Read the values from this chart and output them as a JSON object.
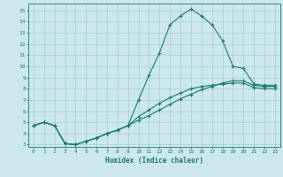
{
  "xlabel": "Humidex (Indice chaleur)",
  "bg_color": "#cce8ee",
  "grid_color": "#aacccc",
  "line_color": "#1a7a6e",
  "xlim": [
    -0.5,
    23.5
  ],
  "ylim": [
    2.8,
    15.6
  ],
  "yticks": [
    3,
    4,
    5,
    6,
    7,
    8,
    9,
    10,
    11,
    12,
    13,
    14,
    15
  ],
  "xticks": [
    0,
    1,
    2,
    3,
    4,
    5,
    6,
    7,
    8,
    9,
    10,
    11,
    12,
    13,
    14,
    15,
    16,
    17,
    18,
    19,
    20,
    21,
    22,
    23
  ],
  "curve1_x": [
    0,
    1,
    2,
    3,
    4,
    5,
    6,
    7,
    8,
    9,
    10,
    11,
    12,
    13,
    14,
    15,
    16,
    17,
    18,
    19,
    20,
    21,
    22,
    23
  ],
  "curve1_y": [
    4.7,
    5.0,
    4.7,
    3.1,
    3.0,
    3.3,
    3.6,
    4.0,
    4.3,
    4.7,
    7.0,
    9.2,
    11.2,
    13.7,
    14.5,
    15.1,
    14.5,
    13.7,
    12.3,
    10.0,
    9.8,
    8.4,
    8.3,
    8.3
  ],
  "curve2_x": [
    0,
    1,
    2,
    3,
    4,
    5,
    6,
    7,
    8,
    9,
    10,
    11,
    12,
    13,
    14,
    15,
    16,
    17,
    18,
    19,
    20,
    21,
    22,
    23
  ],
  "curve2_y": [
    4.7,
    5.0,
    4.7,
    3.1,
    3.0,
    3.3,
    3.6,
    4.0,
    4.3,
    4.7,
    5.2,
    5.6,
    6.1,
    6.6,
    7.1,
    7.5,
    7.9,
    8.2,
    8.5,
    8.7,
    8.7,
    8.3,
    8.2,
    8.2
  ],
  "curve3_x": [
    0,
    1,
    2,
    3,
    4,
    5,
    6,
    7,
    8,
    9,
    10,
    11,
    12,
    13,
    14,
    15,
    16,
    17,
    18,
    19,
    20,
    21,
    22,
    23
  ],
  "curve3_y": [
    4.7,
    5.0,
    4.7,
    3.1,
    3.0,
    3.3,
    3.6,
    4.0,
    4.3,
    4.7,
    5.5,
    6.1,
    6.7,
    7.2,
    7.6,
    8.0,
    8.2,
    8.3,
    8.4,
    8.5,
    8.5,
    8.1,
    8.0,
    8.0
  ]
}
